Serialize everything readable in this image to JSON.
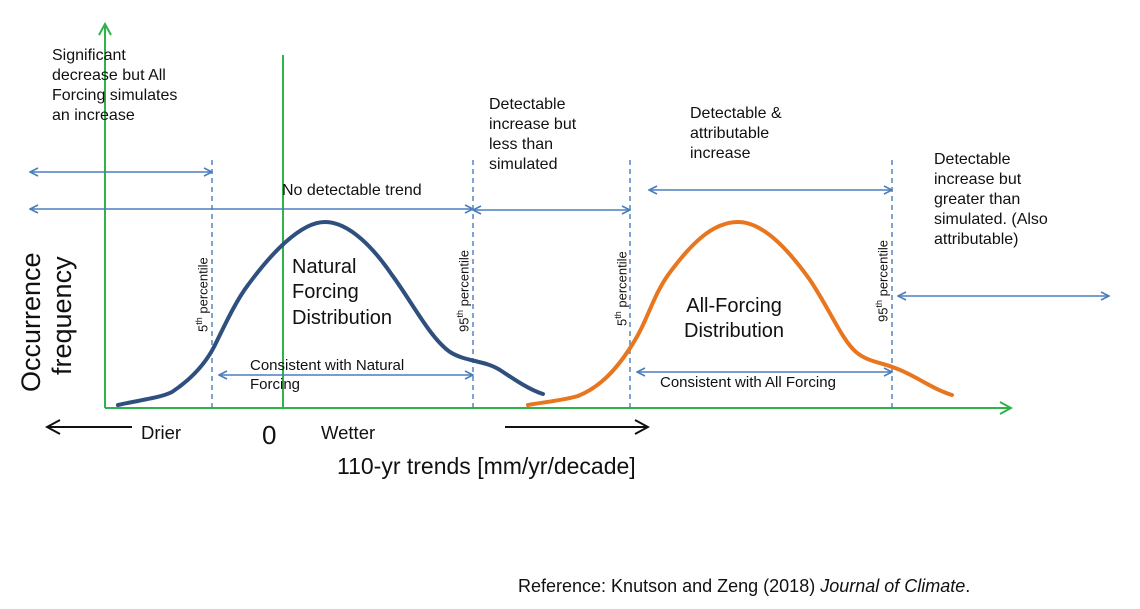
{
  "colors": {
    "axis": "#2db34a",
    "arrow": "#4a7ebb",
    "natural_curve": "#2f4f7f",
    "all_curve": "#e8761e",
    "text": "#111111"
  },
  "icons": {
    "axis_arrows": "arrow-up-and-right",
    "range_arrows": "double-headed-arrow"
  },
  "annotations": {
    "significant_decrease": "Significant\ndecrease  but All\nForcing simulates\nan increase",
    "no_detectable_trend": "No detectable trend",
    "detectable_less": "Detectable\nincrease  but\nless than\nsimulated",
    "detectable_attributable": "Detectable &\nattributable\nincrease",
    "detectable_greater": "Detectable\nincrease but\ngreater than\nsimulated. (Also\nattributable)",
    "consistent_natural": "Consistent with Natural\nForcing",
    "consistent_all": "Consistent with All Forcing"
  },
  "distributions": {
    "natural_label": "Natural\nForcing\nDistribution",
    "all_label": "All-Forcing\nDistribution"
  },
  "percentiles": {
    "p5_number": "5",
    "p95_number": "95",
    "suffix_sup": "th",
    "word": " percentile"
  },
  "axis": {
    "y_label_line1": "Occurrence",
    "y_label_line2": "frequency",
    "x_label": "110-yr trends [mm/yr/decade]",
    "zero": "0",
    "drier": "Drier",
    "wetter": "Wetter"
  },
  "reference": {
    "prefix": "Reference:  Knutson and Zeng (2018)  ",
    "journal": "Journal of Climate",
    "suffix": "."
  }
}
